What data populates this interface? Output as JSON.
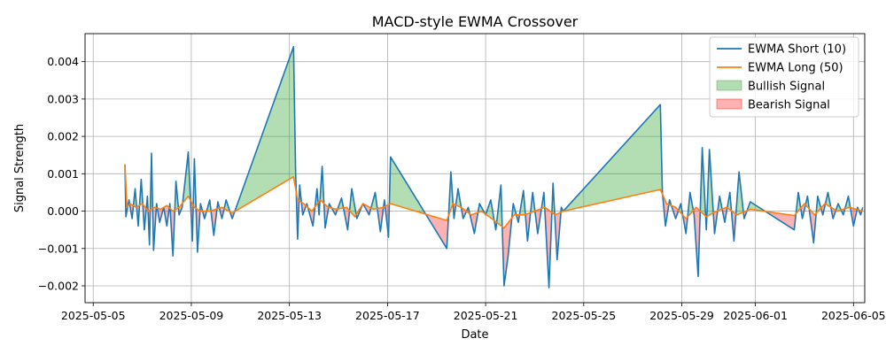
{
  "chart_data": {
    "type": "line",
    "title": "MACD-style EWMA Crossover",
    "xlabel": "Date",
    "ylabel": "Signal Strength",
    "x_axis": {
      "min": "2025-05-04T16:00",
      "max": "2025-06-05T11:00",
      "ticks": [
        "2025-05-05",
        "2025-05-09",
        "2025-05-13",
        "2025-05-17",
        "2025-05-21",
        "2025-05-25",
        "2025-05-29",
        "2025-06-01",
        "2025-06-05"
      ]
    },
    "y_axis": {
      "min": -0.00245,
      "max": 0.00475,
      "ticks": [
        -0.002,
        -0.001,
        0.0,
        0.001,
        0.002,
        0.003,
        0.004
      ],
      "tick_labels": [
        "−0.002",
        "−0.001",
        "0.000",
        "0.001",
        "0.002",
        "0.003",
        "0.004"
      ]
    },
    "grid": true,
    "legend_position": "top-right",
    "legend": [
      {
        "label": "EWMA Short (10)",
        "kind": "line",
        "color": "#1f77b4"
      },
      {
        "label": "EWMA Long (50)",
        "kind": "line",
        "color": "#ff7f0e"
      },
      {
        "label": "Bullish Signal",
        "kind": "fill",
        "color": "#2ca02c"
      },
      {
        "label": "Bearish Signal",
        "kind": "fill",
        "color": "#ff0000"
      }
    ],
    "series": [
      {
        "name": "EWMA Short (10)",
        "color": "#1f77b4",
        "points": [
          [
            "2025-05-06T07:00",
            0.00125
          ],
          [
            "2025-05-06T08:00",
            -0.00015
          ],
          [
            "2025-05-06T11:00",
            0.0003
          ],
          [
            "2025-05-06T14:00",
            -0.0002
          ],
          [
            "2025-05-06T17:00",
            0.0006
          ],
          [
            "2025-05-06T20:00",
            -0.0004
          ],
          [
            "2025-05-06T23:00",
            0.00085
          ],
          [
            "2025-05-07T02:00",
            -0.0005
          ],
          [
            "2025-05-07T05:00",
            0.0004
          ],
          [
            "2025-05-07T07:00",
            -0.0009
          ],
          [
            "2025-05-07T09:00",
            0.00155
          ],
          [
            "2025-05-07T11:00",
            -0.00105
          ],
          [
            "2025-05-07T14:00",
            0.0002
          ],
          [
            "2025-05-07T17:00",
            -0.0003
          ],
          [
            "2025-05-07T21:00",
            0.0001
          ],
          [
            "2025-05-08T00:00",
            -0.0004
          ],
          [
            "2025-05-08T03:00",
            0.0002
          ],
          [
            "2025-05-08T06:00",
            -0.0012
          ],
          [
            "2025-05-08T09:00",
            0.0008
          ],
          [
            "2025-05-08T12:00",
            -0.0001
          ],
          [
            "2025-05-08T15:00",
            0.0001
          ],
          [
            "2025-05-08T21:00",
            0.00158
          ],
          [
            "2025-05-09T01:00",
            -0.0008
          ],
          [
            "2025-05-09T03:00",
            0.0014
          ],
          [
            "2025-05-09T06:00",
            -0.0011
          ],
          [
            "2025-05-09T09:00",
            0.0002
          ],
          [
            "2025-05-09T13:00",
            -0.0002
          ],
          [
            "2025-05-09T18:00",
            0.0003
          ],
          [
            "2025-05-09T22:00",
            -0.00065
          ],
          [
            "2025-05-10T02:00",
            0.00025
          ],
          [
            "2025-05-10T06:00",
            -0.0002
          ],
          [
            "2025-05-10T10:00",
            0.0003
          ],
          [
            "2025-05-10T16:00",
            -0.0002
          ],
          [
            "2025-05-13T04:00",
            0.0044
          ],
          [
            "2025-05-13T06:00",
            0.0011
          ],
          [
            "2025-05-13T08:00",
            -0.00075
          ],
          [
            "2025-05-13T10:00",
            0.0007
          ],
          [
            "2025-05-13T13:00",
            -0.0001
          ],
          [
            "2025-05-13T17:00",
            0.0002
          ],
          [
            "2025-05-13T23:00",
            -0.0004
          ],
          [
            "2025-05-14T03:00",
            0.0006
          ],
          [
            "2025-05-14T05:00",
            -0.0001
          ],
          [
            "2025-05-14T08:00",
            0.0012
          ],
          [
            "2025-05-14T11:00",
            -0.00045
          ],
          [
            "2025-05-14T15:00",
            0.0002
          ],
          [
            "2025-05-14T21:00",
            -0.0001
          ],
          [
            "2025-05-15T03:00",
            0.00035
          ],
          [
            "2025-05-15T09:00",
            -0.0005
          ],
          [
            "2025-05-15T13:00",
            0.0006
          ],
          [
            "2025-05-15T18:00",
            -0.0002
          ],
          [
            "2025-05-16T00:00",
            0.0002
          ],
          [
            "2025-05-16T06:00",
            -0.0001
          ],
          [
            "2025-05-16T12:00",
            0.0005
          ],
          [
            "2025-05-16T17:00",
            -0.00055
          ],
          [
            "2025-05-16T21:00",
            0.0003
          ],
          [
            "2025-05-17T01:00",
            -0.0007
          ],
          [
            "2025-05-17T03:00",
            0.00145
          ],
          [
            "2025-05-19T10:00",
            -0.001
          ],
          [
            "2025-05-19T14:00",
            0.00105
          ],
          [
            "2025-05-19T17:00",
            -0.0002
          ],
          [
            "2025-05-19T21:00",
            0.0006
          ],
          [
            "2025-05-20T02:00",
            -0.0002
          ],
          [
            "2025-05-20T07:00",
            0.0001
          ],
          [
            "2025-05-20T13:00",
            -0.0006
          ],
          [
            "2025-05-20T18:00",
            0.0002
          ],
          [
            "2025-05-21T00:00",
            -0.0001
          ],
          [
            "2025-05-21T05:00",
            0.0003
          ],
          [
            "2025-05-21T10:00",
            -0.0005
          ],
          [
            "2025-05-21T15:00",
            0.0007
          ],
          [
            "2025-05-21T18:00",
            -0.002
          ],
          [
            "2025-05-21T22:00",
            -0.0012
          ],
          [
            "2025-05-22T03:00",
            0.0002
          ],
          [
            "2025-05-22T08:00",
            -0.0003
          ],
          [
            "2025-05-22T13:00",
            0.00055
          ],
          [
            "2025-05-22T17:00",
            -0.0008
          ],
          [
            "2025-05-22T22:00",
            0.0005
          ],
          [
            "2025-05-23T03:00",
            -0.0006
          ],
          [
            "2025-05-23T09:00",
            0.0005
          ],
          [
            "2025-05-23T14:00",
            -0.00205
          ],
          [
            "2025-05-23T18:00",
            0.00075
          ],
          [
            "2025-05-23T22:00",
            -0.0013
          ],
          [
            "2025-05-24T02:00",
            0.0001
          ],
          [
            "2025-05-24T04:00",
            0.0
          ],
          [
            "2025-05-28T03:00",
            0.00285
          ],
          [
            "2025-05-28T05:00",
            0.0005
          ],
          [
            "2025-05-28T08:00",
            -0.0004
          ],
          [
            "2025-05-28T12:00",
            0.0003
          ],
          [
            "2025-05-28T18:00",
            -0.0002
          ],
          [
            "2025-05-28T23:00",
            0.0002
          ],
          [
            "2025-05-29T04:00",
            -0.0006
          ],
          [
            "2025-05-29T08:00",
            0.0005
          ],
          [
            "2025-05-29T12:00",
            -0.0001
          ],
          [
            "2025-05-29T16:00",
            -0.00175
          ],
          [
            "2025-05-29T20:00",
            0.0017
          ],
          [
            "2025-05-30T00:00",
            -0.0005
          ],
          [
            "2025-05-30T03:00",
            0.00165
          ],
          [
            "2025-05-30T08:00",
            -0.0006
          ],
          [
            "2025-05-30T13:00",
            0.0004
          ],
          [
            "2025-05-30T18:00",
            -0.0003
          ],
          [
            "2025-05-30T23:00",
            0.0005
          ],
          [
            "2025-05-31T03:00",
            -0.0008
          ],
          [
            "2025-05-31T08:00",
            0.00105
          ],
          [
            "2025-05-31T13:00",
            -0.0002
          ],
          [
            "2025-05-31T19:00",
            0.00025
          ],
          [
            "2025-06-02T14:00",
            -0.0005
          ],
          [
            "2025-06-02T18:00",
            0.0005
          ],
          [
            "2025-06-02T22:00",
            -0.0002
          ],
          [
            "2025-06-03T03:00",
            0.0004
          ],
          [
            "2025-06-03T09:00",
            -0.00085
          ],
          [
            "2025-06-03T13:00",
            0.0004
          ],
          [
            "2025-06-03T18:00",
            -0.0001
          ],
          [
            "2025-06-03T23:00",
            0.0005
          ],
          [
            "2025-06-04T04:00",
            -0.0002
          ],
          [
            "2025-06-04T09:00",
            0.0002
          ],
          [
            "2025-06-04T14:00",
            -0.0001
          ],
          [
            "2025-06-04T19:00",
            0.0004
          ],
          [
            "2025-06-05T00:00",
            -0.0004
          ],
          [
            "2025-06-05T04:00",
            0.0001
          ],
          [
            "2025-06-05T07:00",
            -0.0001
          ],
          [
            "2025-06-05T09:00",
            0.0001
          ]
        ]
      },
      {
        "name": "EWMA Long (50)",
        "color": "#ff7f0e",
        "points": [
          [
            "2025-05-06T07:00",
            0.00125
          ],
          [
            "2025-05-06T09:00",
            0.0001
          ],
          [
            "2025-05-06T12:00",
            0.0002
          ],
          [
            "2025-05-06T18:00",
            0.0001
          ],
          [
            "2025-05-07T00:00",
            0.0002
          ],
          [
            "2025-05-07T06:00",
            0.0
          ],
          [
            "2025-05-07T12:00",
            0.0001
          ],
          [
            "2025-05-07T18:00",
            5e-05
          ],
          [
            "2025-05-08T00:00",
            0.00015
          ],
          [
            "2025-05-08T06:00",
            0.0
          ],
          [
            "2025-05-08T12:00",
            0.0001
          ],
          [
            "2025-05-08T21:00",
            0.0004
          ],
          [
            "2025-05-09T03:00",
            0.0001
          ],
          [
            "2025-05-09T09:00",
            0.0
          ],
          [
            "2025-05-09T18:00",
            0.0
          ],
          [
            "2025-05-10T06:00",
            0.0001
          ],
          [
            "2025-05-10T16:00",
            -5e-05
          ],
          [
            "2025-05-13T04:00",
            0.00092
          ],
          [
            "2025-05-13T08:00",
            0.0003
          ],
          [
            "2025-05-13T14:00",
            0.0002
          ],
          [
            "2025-05-13T22:00",
            0.0
          ],
          [
            "2025-05-14T06:00",
            0.0003
          ],
          [
            "2025-05-14T14:00",
            0.0001
          ],
          [
            "2025-05-14T22:00",
            5e-05
          ],
          [
            "2025-05-15T08:00",
            0.0001
          ],
          [
            "2025-05-15T16:00",
            -0.00015
          ],
          [
            "2025-05-16T00:00",
            0.0002
          ],
          [
            "2025-05-16T10:00",
            5e-05
          ],
          [
            "2025-05-16T20:00",
            0.0001
          ],
          [
            "2025-05-17T03:00",
            0.0002
          ],
          [
            "2025-05-19T10:00",
            -0.00025
          ],
          [
            "2025-05-19T16:00",
            0.0002
          ],
          [
            "2025-05-20T00:00",
            0.0001
          ],
          [
            "2025-05-20T10:00",
            -0.0001
          ],
          [
            "2025-05-20T20:00",
            0.0
          ],
          [
            "2025-05-21T06:00",
            -0.0002
          ],
          [
            "2025-05-21T18:00",
            -0.00045
          ],
          [
            "2025-05-22T04:00",
            -0.0001
          ],
          [
            "2025-05-22T14:00",
            -0.0001
          ],
          [
            "2025-05-23T00:00",
            0.0
          ],
          [
            "2025-05-23T10:00",
            0.0001
          ],
          [
            "2025-05-23T20:00",
            -0.0001
          ],
          [
            "2025-05-24T04:00",
            0.0
          ],
          [
            "2025-05-28T03:00",
            0.00058
          ],
          [
            "2025-05-28T09:00",
            0.0002
          ],
          [
            "2025-05-28T18:00",
            0.0001
          ],
          [
            "2025-05-29T04:00",
            -0.0002
          ],
          [
            "2025-05-29T14:00",
            0.0001
          ],
          [
            "2025-05-30T00:00",
            -0.00015
          ],
          [
            "2025-05-30T10:00",
            0.0
          ],
          [
            "2025-05-30T20:00",
            0.0001
          ],
          [
            "2025-05-31T06:00",
            -0.0001
          ],
          [
            "2025-05-31T19:00",
            5e-05
          ],
          [
            "2025-06-02T14:00",
            -0.00012
          ],
          [
            "2025-06-03T00:00",
            0.0002
          ],
          [
            "2025-06-03T10:00",
            -0.0001
          ],
          [
            "2025-06-03T20:00",
            0.0002
          ],
          [
            "2025-06-04T08:00",
            0.0
          ],
          [
            "2025-06-04T20:00",
            0.0001
          ],
          [
            "2025-06-05T09:00",
            0.0
          ]
        ]
      }
    ]
  }
}
